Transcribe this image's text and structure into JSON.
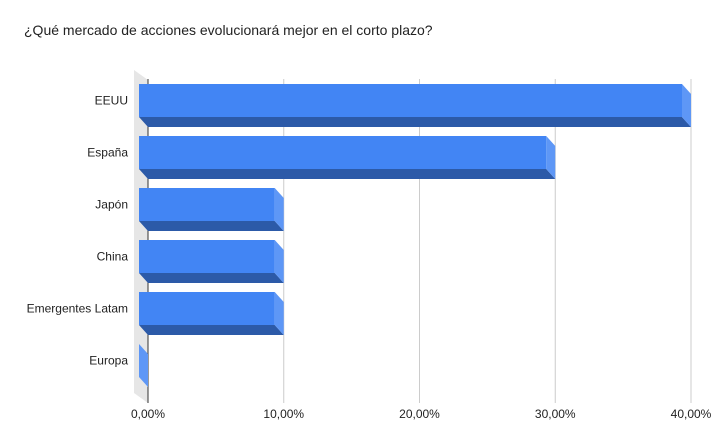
{
  "chart_data": {
    "type": "bar",
    "orientation": "horizontal",
    "style": "3d",
    "title": "¿Qué mercado de acciones evolucionará mejor en el corto plazo?",
    "categories": [
      "EEUU",
      "España",
      "Japón",
      "China",
      "Emergentes Latam",
      "Europa"
    ],
    "values": [
      40,
      30,
      10,
      10,
      10,
      0
    ],
    "value_unit": "%",
    "xlim": [
      0,
      40
    ],
    "xticks": [
      {
        "value": 0,
        "label": "0,00%"
      },
      {
        "value": 10,
        "label": "10,00%"
      },
      {
        "value": 20,
        "label": "20,00%"
      },
      {
        "value": 30,
        "label": "30,00%"
      },
      {
        "value": 40,
        "label": "40,00%"
      }
    ],
    "grid": true,
    "legend": "none",
    "colors": {
      "bar_front": "#4285f4",
      "bar_bottom": "#2c5aa8",
      "bar_side": "#5e97f6",
      "grid": "#cccccc",
      "wall": "#e6e6e6"
    }
  }
}
